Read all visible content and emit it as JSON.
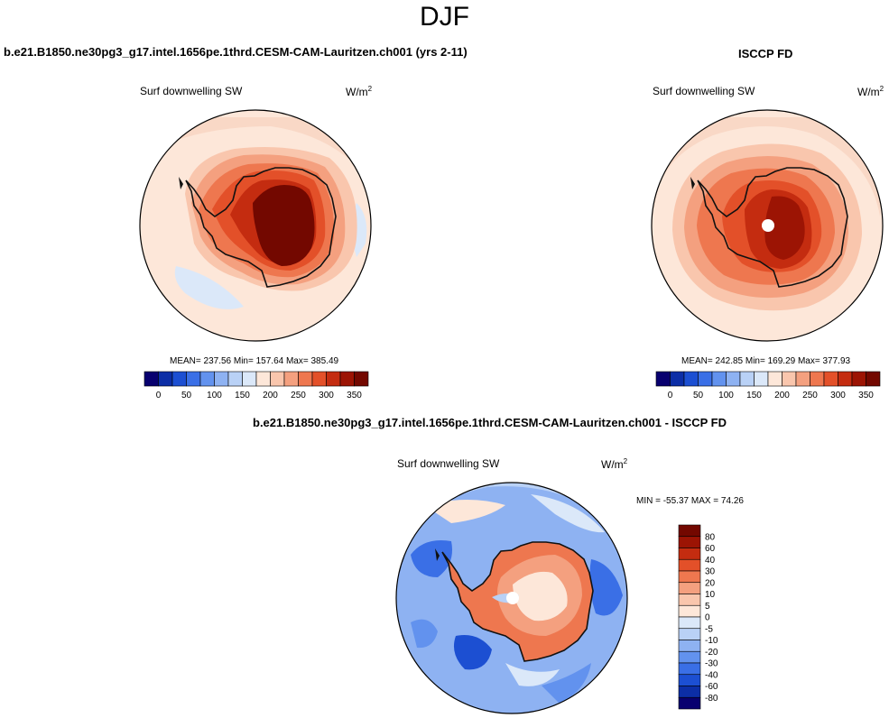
{
  "season": "DJF",
  "panels": {
    "model": {
      "title": "b.e21.B1850.ne30pg3_g17.intel.1656pe.1thrd.CESM-CAM-Lauritzen.ch001 (yrs 2-11)",
      "variable": "Surf downwelling SW",
      "units_base": "W/m",
      "units_exp": "2",
      "stats": "MEAN= 237.56  Min= 157.64  Max= 385.49"
    },
    "obs": {
      "title": "ISCCP FD",
      "variable": "Surf downwelling SW",
      "units_base": "W/m",
      "units_exp": "2",
      "stats": "MEAN= 242.85  Min= 169.29  Max= 377.93"
    },
    "diff": {
      "title": "b.e21.B1850.ne30pg3_g17.intel.1656pe.1thrd.CESM-CAM-Lauritzen.ch001 - ISCCP FD",
      "variable": "Surf downwelling SW",
      "units_base": "W/m",
      "units_exp": "2",
      "stats": "MIN = -55.37 MAX =  74.26"
    }
  },
  "chart_data": [
    {
      "type": "heatmap",
      "projection": "south polar stereographic",
      "title": "b.e21.B1850.ne30pg3_g17.intel.1656pe.1thrd.CESM-CAM-Lauritzen.ch001 (yrs 2-11)",
      "variable": "Surf downwelling SW",
      "units": "W/m2",
      "mean": 237.56,
      "min": 157.64,
      "max": 385.49,
      "colorbar_levels": [
        0,
        50,
        100,
        150,
        200,
        250,
        300,
        350
      ],
      "colorbar_orientation": "horizontal"
    },
    {
      "type": "heatmap",
      "projection": "south polar stereographic",
      "title": "ISCCP FD",
      "variable": "Surf downwelling SW",
      "units": "W/m2",
      "mean": 242.85,
      "min": 169.29,
      "max": 377.93,
      "colorbar_levels": [
        0,
        50,
        100,
        150,
        200,
        250,
        300,
        350
      ],
      "colorbar_orientation": "horizontal"
    },
    {
      "type": "heatmap",
      "projection": "south polar stereographic",
      "title": "b.e21.B1850.ne30pg3_g17.intel.1656pe.1thrd.CESM-CAM-Lauritzen.ch001 - ISCCP FD",
      "variable": "Surf downwelling SW",
      "units": "W/m2",
      "min": -55.37,
      "max": 74.26,
      "colorbar_levels": [
        -80,
        -60,
        -40,
        -30,
        -20,
        -10,
        -5,
        0,
        5,
        10,
        20,
        30,
        40,
        60,
        80
      ],
      "colorbar_orientation": "vertical"
    }
  ],
  "colors": {
    "ramp": [
      "#08006f",
      "#0c2ea6",
      "#1c4fd2",
      "#3a6fe6",
      "#6292ee",
      "#8eb2f2",
      "#b9d1f6",
      "#dbe8f9",
      "#fde7d9",
      "#f9c6ad",
      "#f4a07f",
      "#ee774f",
      "#e35029",
      "#c42c10",
      "#9c1404",
      "#730800"
    ],
    "continent_outline": "#111111",
    "pole_hole": "#ffffff"
  }
}
